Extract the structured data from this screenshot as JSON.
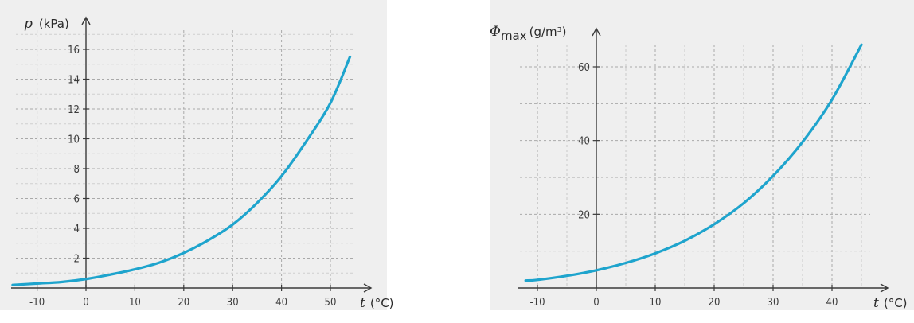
{
  "colors": {
    "curve": "#1ea4cd",
    "background": "#efefef",
    "axis": "#3a3a3a",
    "grid": "#a9a9a9"
  },
  "chart_data": [
    {
      "type": "line",
      "title": "",
      "ylabel_symbol": "p",
      "ylabel_unit": "(kPa)",
      "xlabel_symbol": "t",
      "xlabel_unit": "(°C)",
      "xlim": [
        -16,
        55
      ],
      "ylim": [
        0,
        17.5
      ],
      "xticks": [
        -10,
        0,
        10,
        20,
        30,
        40,
        50
      ],
      "yticks": [
        2,
        4,
        6,
        8,
        10,
        12,
        14,
        16
      ],
      "xtick_labels": [
        "-10",
        "0",
        "10",
        "20",
        "30",
        "40",
        "50"
      ],
      "ytick_labels": [
        "2",
        "4",
        "6",
        "8",
        "10",
        "12",
        "14",
        "16"
      ],
      "grid": true,
      "series": [
        {
          "x": [
            -15,
            -10,
            -5,
            0,
            5,
            10,
            15,
            20,
            25,
            30,
            35,
            40,
            45,
            50,
            54
          ],
          "y": [
            0.2,
            0.3,
            0.4,
            0.6,
            0.9,
            1.25,
            1.7,
            2.35,
            3.2,
            4.25,
            5.7,
            7.5,
            9.8,
            12.4,
            15.5
          ]
        }
      ]
    },
    {
      "type": "line",
      "title": "",
      "ylabel_symbol": "Φ",
      "ylabel_sub": "max",
      "ylabel_unit": "(g/m³)",
      "xlabel_symbol": "t",
      "xlabel_unit": "(°C)",
      "xlim": [
        -12,
        48
      ],
      "ylim": [
        0,
        72
      ],
      "xticks": [
        -10,
        0,
        10,
        20,
        30,
        40
      ],
      "yticks": [
        20,
        40,
        60
      ],
      "xtick_labels": [
        "-10",
        "0",
        "10",
        "20",
        "30",
        "40"
      ],
      "ytick_labels": [
        "20",
        "40",
        "60"
      ],
      "grid": true,
      "series": [
        {
          "x": [
            -12,
            -10,
            -5,
            0,
            5,
            10,
            15,
            20,
            25,
            30,
            35,
            40,
            45
          ],
          "y": [
            2,
            2.2,
            3.3,
            4.8,
            6.8,
            9.4,
            12.8,
            17.3,
            23,
            30.4,
            39.6,
            51.1,
            66
          ]
        }
      ]
    }
  ]
}
